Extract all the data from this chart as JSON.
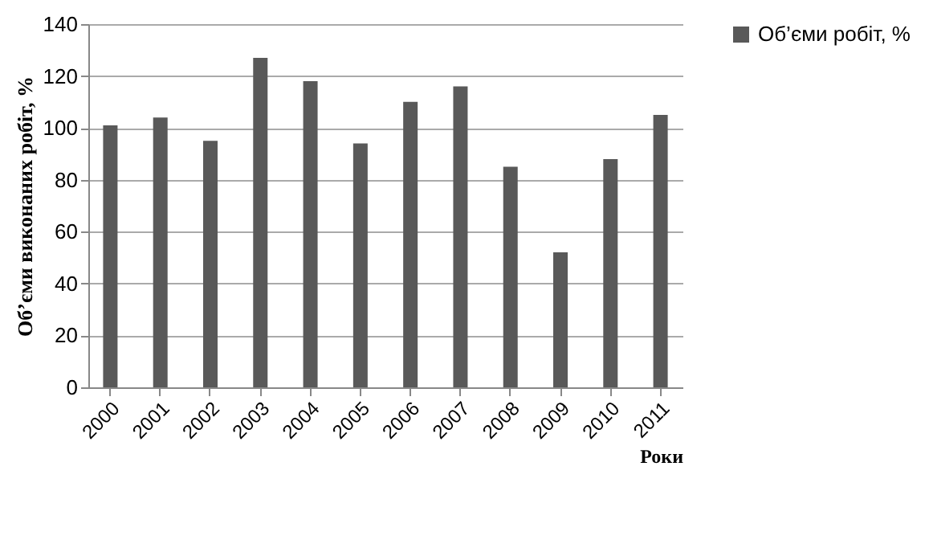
{
  "chart_data": {
    "type": "bar",
    "xlabel": "Роки",
    "ylabel": "Об’єми виконаних робіт, %",
    "categories": [
      "2000",
      "2001",
      "2002",
      "2003",
      "2004",
      "2005",
      "2006",
      "2007",
      "2008",
      "2009",
      "2010",
      "2011"
    ],
    "series": [
      {
        "name": "Об’єми робіт, %",
        "color": "#595959",
        "values": [
          101,
          104,
          95,
          127,
          118,
          94,
          110,
          116,
          85,
          52,
          88,
          105
        ]
      }
    ],
    "ylim": [
      0,
      140
    ],
    "yticks": [
      0,
      20,
      40,
      60,
      80,
      100,
      120,
      140
    ],
    "grid": "y",
    "legend": "right"
  }
}
